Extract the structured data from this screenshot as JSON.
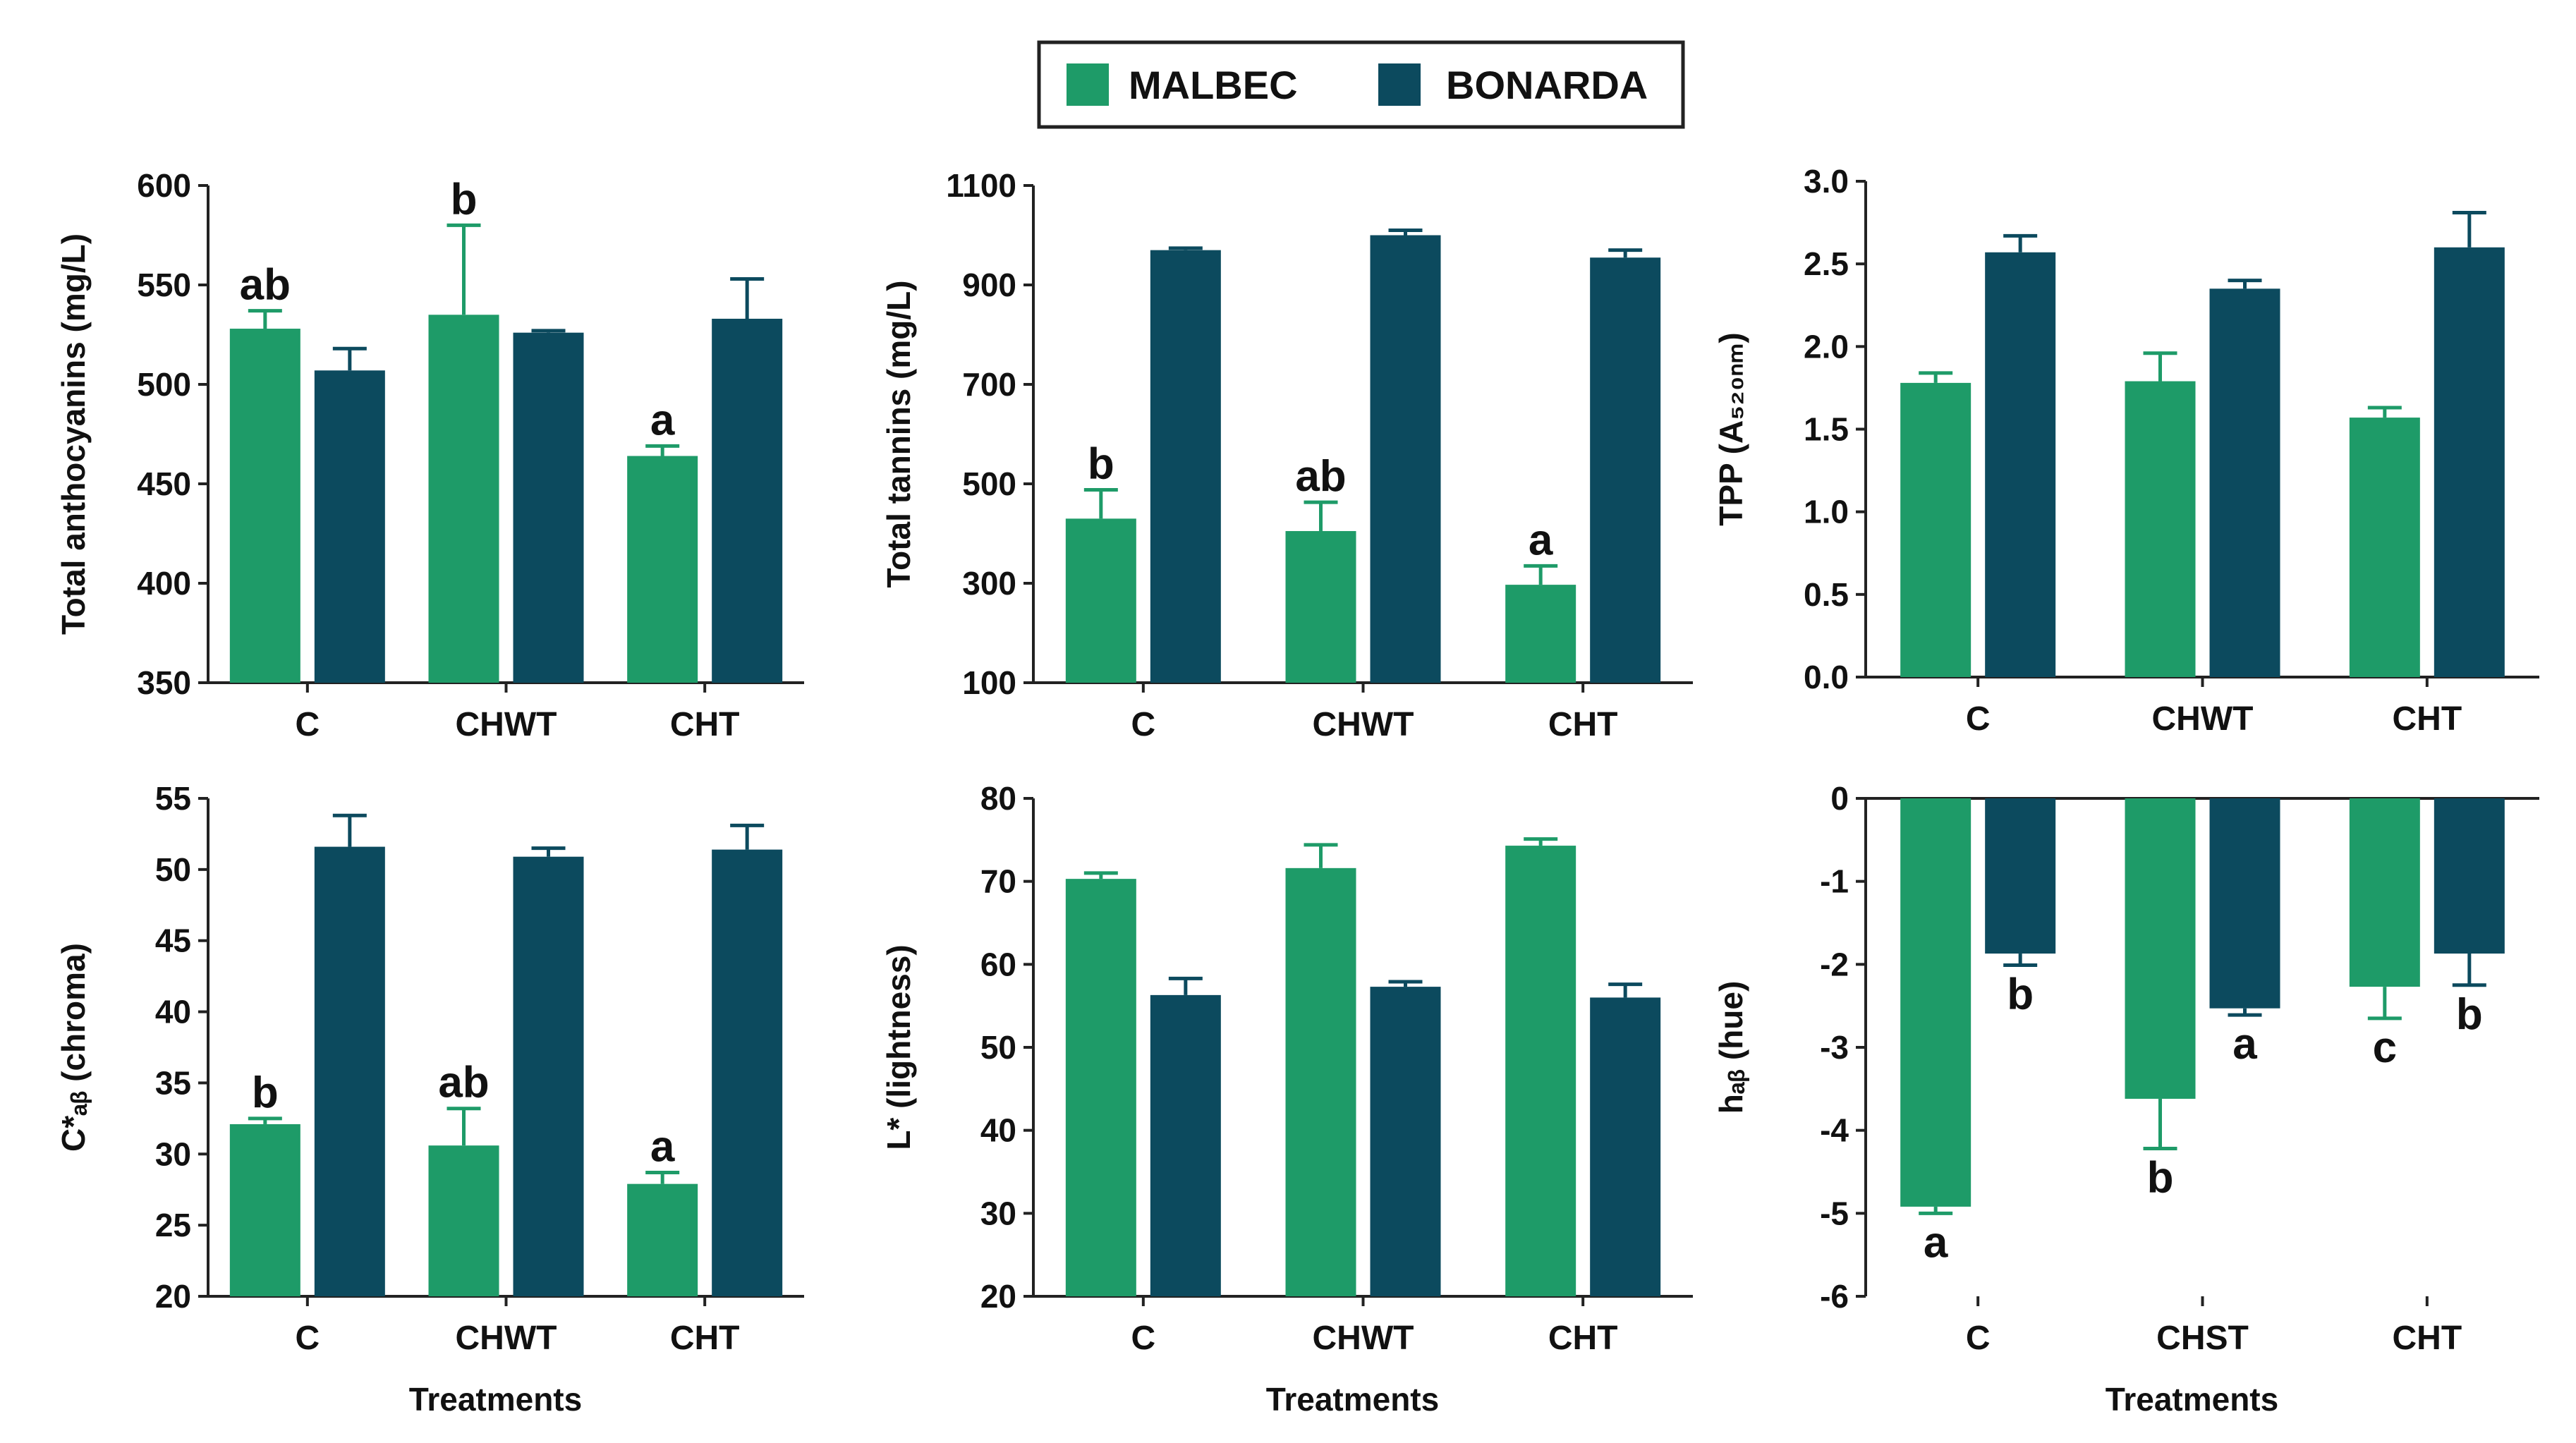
{
  "legend": {
    "series": [
      "MALBEC",
      "BONARDA"
    ]
  },
  "colors": {
    "MALBEC": "#1e9b68",
    "BONARDA": "#0c4a5e",
    "axis": "#222222"
  },
  "chart_data": [
    {
      "type": "bar",
      "ylabel": "Total anthocyanins (mg/L)",
      "xlabel": "",
      "categories": [
        "C",
        "CHWT",
        "CHT"
      ],
      "ylim": [
        350,
        600
      ],
      "yticks": [
        "350",
        "400",
        "450",
        "500",
        "550",
        "600"
      ],
      "series": [
        {
          "name": "MALBEC",
          "values": [
            528,
            535,
            464
          ],
          "errors": [
            9,
            45,
            5
          ]
        },
        {
          "name": "BONARDA",
          "values": [
            507,
            526,
            533
          ],
          "errors": [
            11,
            1,
            20
          ]
        }
      ],
      "annotations": [
        {
          "series": "MALBEC",
          "category": "C",
          "text": "ab"
        },
        {
          "series": "MALBEC",
          "category": "CHWT",
          "text": "b"
        },
        {
          "series": "MALBEC",
          "category": "CHT",
          "text": "a"
        }
      ]
    },
    {
      "type": "bar",
      "ylabel": "Total tannins (mg/L)",
      "xlabel": "",
      "categories": [
        "C",
        "CHWT",
        "CHT"
      ],
      "ylim": [
        100,
        1100
      ],
      "yticks": [
        "100",
        "300",
        "500",
        "700",
        "900",
        "1100"
      ],
      "series": [
        {
          "name": "MALBEC",
          "values": [
            430,
            405,
            297
          ],
          "errors": [
            58,
            58,
            38
          ]
        },
        {
          "name": "BONARDA",
          "values": [
            970,
            1000,
            955
          ],
          "errors": [
            4,
            10,
            15
          ]
        }
      ],
      "annotations": [
        {
          "series": "MALBEC",
          "category": "C",
          "text": "b"
        },
        {
          "series": "MALBEC",
          "category": "CHWT",
          "text": "ab"
        },
        {
          "series": "MALBEC",
          "category": "CHT",
          "text": "a"
        }
      ]
    },
    {
      "type": "bar",
      "ylabel": "TPP (A₅₂₀ₙₘ)",
      "xlabel": "",
      "categories": [
        "C",
        "CHWT",
        "CHT"
      ],
      "ylim": [
        0,
        3
      ],
      "yticks": [
        "0.0",
        "0.5",
        "1.0",
        "1.5",
        "2.0",
        "2.5",
        "3.0"
      ],
      "series": [
        {
          "name": "MALBEC",
          "values": [
            1.78,
            1.79,
            1.57
          ],
          "errors": [
            0.06,
            0.17,
            0.06
          ]
        },
        {
          "name": "BONARDA",
          "values": [
            2.57,
            2.35,
            2.6
          ],
          "errors": [
            0.1,
            0.05,
            0.21
          ]
        }
      ],
      "annotations": []
    },
    {
      "type": "bar",
      "ylabel": "C*ₐᵦ (chroma)",
      "xlabel": "Treatments",
      "categories": [
        "C",
        "CHWT",
        "CHT"
      ],
      "ylim": [
        20,
        55
      ],
      "yticks": [
        "20",
        "25",
        "30",
        "35",
        "40",
        "45",
        "50",
        "55"
      ],
      "series": [
        {
          "name": "MALBEC",
          "values": [
            32.1,
            30.6,
            27.9
          ],
          "errors": [
            0.4,
            2.6,
            0.8
          ]
        },
        {
          "name": "BONARDA",
          "values": [
            51.6,
            50.9,
            51.4
          ],
          "errors": [
            2.2,
            0.6,
            1.7
          ]
        }
      ],
      "annotations": [
        {
          "series": "MALBEC",
          "category": "C",
          "text": "b"
        },
        {
          "series": "MALBEC",
          "category": "CHWT",
          "text": "ab"
        },
        {
          "series": "MALBEC",
          "category": "CHT",
          "text": "a"
        }
      ]
    },
    {
      "type": "bar",
      "ylabel": "L* (lightness)",
      "xlabel": "Treatments",
      "categories": [
        "C",
        "CHWT",
        "CHT"
      ],
      "ylim": [
        20,
        80
      ],
      "yticks": [
        "20",
        "30",
        "40",
        "50",
        "60",
        "70",
        "80"
      ],
      "series": [
        {
          "name": "MALBEC",
          "values": [
            70.3,
            71.6,
            74.3
          ],
          "errors": [
            0.7,
            2.8,
            0.8
          ]
        },
        {
          "name": "BONARDA",
          "values": [
            56.3,
            57.3,
            56.0
          ],
          "errors": [
            2.0,
            0.6,
            1.6
          ]
        }
      ],
      "annotations": []
    },
    {
      "type": "bar",
      "ylabel": "hₐᵦ (hue)",
      "xlabel": "Treatments",
      "categories": [
        "C",
        "CHST",
        "CHT"
      ],
      "ylim": [
        -6,
        0
      ],
      "yticks": [
        "-6",
        "-5",
        "-4",
        "-3",
        "-2",
        "-1",
        "0"
      ],
      "series": [
        {
          "name": "MALBEC",
          "values": [
            -4.92,
            -3.62,
            -2.27
          ],
          "errors": [
            0.08,
            0.6,
            0.38
          ]
        },
        {
          "name": "BONARDA",
          "values": [
            -1.87,
            -2.53,
            -1.87
          ],
          "errors": [
            0.14,
            0.08,
            0.38
          ]
        }
      ],
      "annotations": [
        {
          "series": "MALBEC",
          "category": "C",
          "text": "a"
        },
        {
          "series": "BONARDA",
          "category": "C",
          "text": "b"
        },
        {
          "series": "MALBEC",
          "category": "CHST",
          "text": "b"
        },
        {
          "series": "BONARDA",
          "category": "CHST",
          "text": "a"
        },
        {
          "series": "MALBEC",
          "category": "CHT",
          "text": "c"
        },
        {
          "series": "BONARDA",
          "category": "CHT",
          "text": "b"
        }
      ]
    }
  ]
}
